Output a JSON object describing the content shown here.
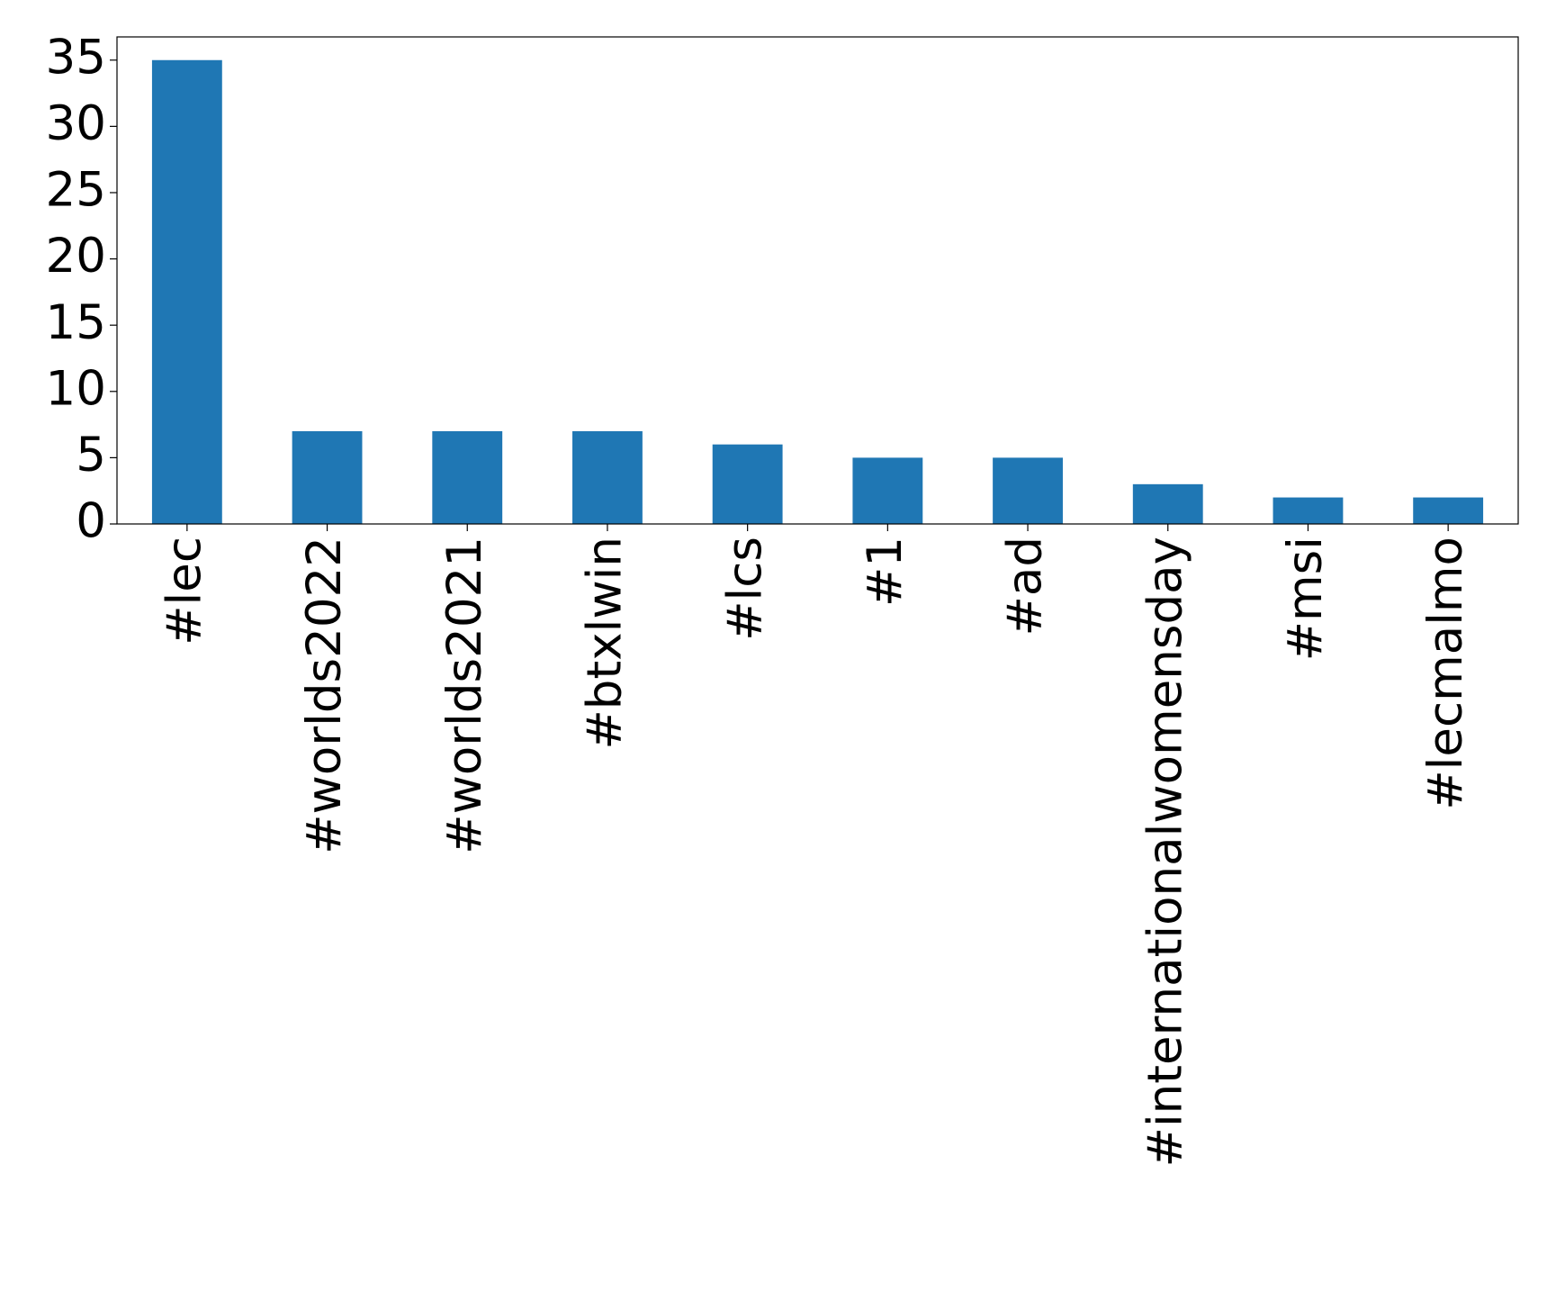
{
  "chart_data": {
    "type": "bar",
    "categories": [
      "#lec",
      "#worlds2022",
      "#worlds2021",
      "#btxlwin",
      "#lcs",
      "#1",
      "#ad",
      "#internationalwomensday",
      "#msi",
      "#lecmalmo"
    ],
    "values": [
      35,
      7,
      7,
      7,
      6,
      5,
      5,
      3,
      2,
      2
    ],
    "color": "#1f77b4",
    "ylim": [
      0,
      36.75
    ],
    "yticks": [
      0,
      5,
      10,
      15,
      20,
      25,
      30,
      35
    ],
    "grid": false
  }
}
